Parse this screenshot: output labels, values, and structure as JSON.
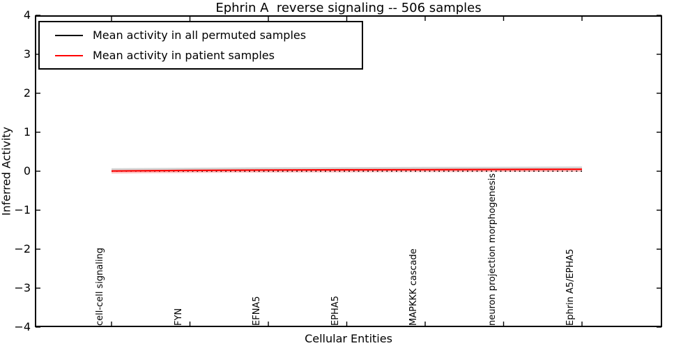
{
  "figure": {
    "title": "Ephrin A  reverse signaling -- 506 samples",
    "xlabel": "Cellular Entities",
    "ylabel": "Inferred Activity"
  },
  "legend": {
    "items": [
      {
        "label": "Mean activity in all permuted samples",
        "color": "#000000"
      },
      {
        "label": "Mean activity in patient samples",
        "color": "#ff0000"
      }
    ]
  },
  "chart_data": {
    "type": "line",
    "title": "Ephrin A  reverse signaling -- 506 samples",
    "xlabel": "Cellular Entities",
    "ylabel": "Inferred Activity",
    "ylim": [
      -4,
      4
    ],
    "yticks": [
      4,
      3,
      2,
      1,
      0,
      -1,
      -2,
      -3,
      -4
    ],
    "grid": false,
    "legend_position": "upper left",
    "categories": [
      "cell-cell signaling",
      "FYN",
      "EFNA5",
      "EPHA5",
      "MAPKKK cascade",
      "neuron projection morphogenesis",
      "Ephrin A5/EPHA5"
    ],
    "series": [
      {
        "name": "Mean activity in all permuted samples",
        "color": "#000000",
        "style": "dotted",
        "values": [
          0,
          0,
          0,
          0,
          0,
          0,
          0
        ]
      },
      {
        "name": "Mean activity in patient samples",
        "color": "#ff0000",
        "style": "solid",
        "values": [
          0.005,
          0.02,
          0.03,
          0.035,
          0.04,
          0.045,
          0.05
        ]
      }
    ],
    "bands": [
      {
        "name": "permuted-samples-band",
        "series_index": 1,
        "upper_offset": 0.07,
        "lower_offset": 0.015,
        "color": "#c8c8c8",
        "opacity": 0.8
      },
      {
        "name": "patient-samples-band",
        "series_index": 1,
        "upper_offset": 0.015,
        "lower_offset": -0.065,
        "color": "#ff9999",
        "opacity": 0.6
      }
    ]
  }
}
